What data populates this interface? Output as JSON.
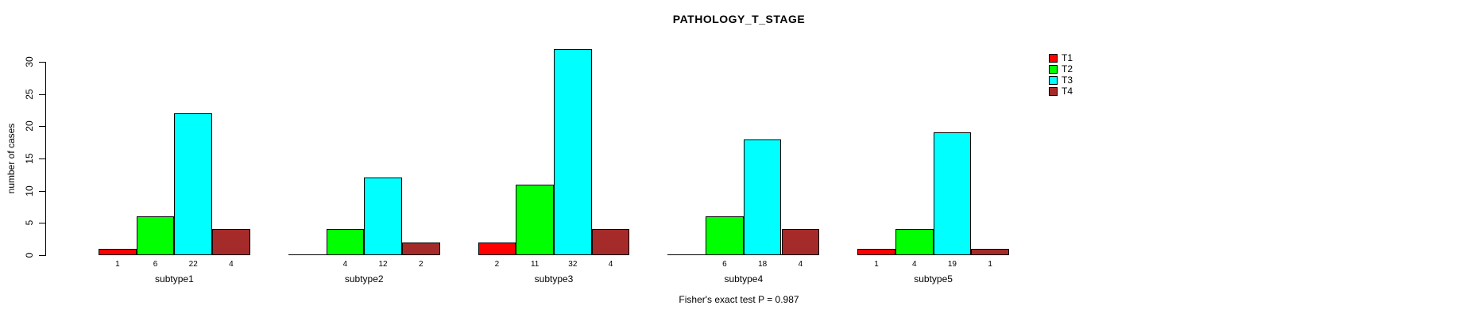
{
  "chart_data": {
    "type": "bar",
    "title": "PATHOLOGY_T_STAGE",
    "ylabel": "number of cases",
    "categories": [
      "subtype1",
      "subtype2",
      "subtype3",
      "subtype4",
      "subtype5"
    ],
    "series": [
      {
        "name": "T1",
        "color": "#FF0000",
        "values": [
          1,
          0,
          2,
          0,
          1
        ]
      },
      {
        "name": "T2",
        "color": "#00FF00",
        "values": [
          6,
          4,
          11,
          6,
          4
        ]
      },
      {
        "name": "T3",
        "color": "#00FFFF",
        "values": [
          22,
          12,
          32,
          18,
          19
        ]
      },
      {
        "name": "T4",
        "color": "#A52A2A",
        "values": [
          4,
          2,
          4,
          4,
          1
        ]
      }
    ],
    "bar_value_labels": [
      [
        "1",
        "",
        "2",
        "",
        "1"
      ],
      [
        "6",
        "4",
        "11",
        "6",
        "4"
      ],
      [
        "22",
        "12",
        "32",
        "18",
        "19"
      ],
      [
        "4",
        "2",
        "4",
        "4",
        "1"
      ]
    ],
    "yticks": [
      0,
      5,
      10,
      15,
      20,
      25,
      30
    ],
    "ylim": [
      0,
      30
    ],
    "grid": false,
    "legend_position": "right",
    "annotation": "Fisher's exact test P = 0.987"
  }
}
